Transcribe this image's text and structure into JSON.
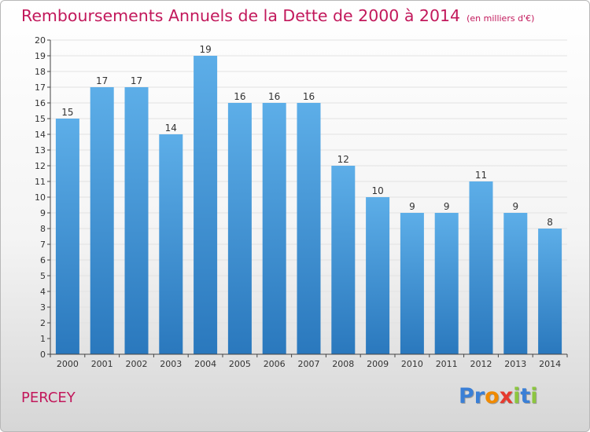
{
  "title": "Remboursements Annuels de la Dette de 2000 à 2014",
  "subtitle": "(en milliers d'€)",
  "place": "PERCEY",
  "logo": {
    "text": "Proxiti",
    "colors": [
      "#3a7fd6",
      "#3a7fd6",
      "#f08a00",
      "#e63a2e",
      "#8cc63f",
      "#3a7fd6",
      "#8cc63f"
    ]
  },
  "colors": {
    "title": "#c2185b",
    "bar_top": "#5daee8",
    "bar_bottom": "#2a78bd"
  },
  "chart_data": {
    "type": "bar",
    "categories": [
      "2000",
      "2001",
      "2002",
      "2003",
      "2004",
      "2005",
      "2006",
      "2007",
      "2008",
      "2009",
      "2010",
      "2011",
      "2012",
      "2013",
      "2014"
    ],
    "values": [
      15,
      17,
      17,
      14,
      19,
      16,
      16,
      16,
      12,
      10,
      9,
      9,
      11,
      9,
      8
    ],
    "title": "Remboursements Annuels de la Dette de 2000 à 2014",
    "xlabel": "",
    "ylabel": "",
    "ylim": [
      0,
      20
    ],
    "yticks": [
      0,
      1,
      2,
      3,
      4,
      5,
      6,
      7,
      8,
      9,
      10,
      11,
      12,
      13,
      14,
      15,
      16,
      17,
      18,
      19,
      20
    ],
    "grid": true,
    "legend": "none"
  }
}
